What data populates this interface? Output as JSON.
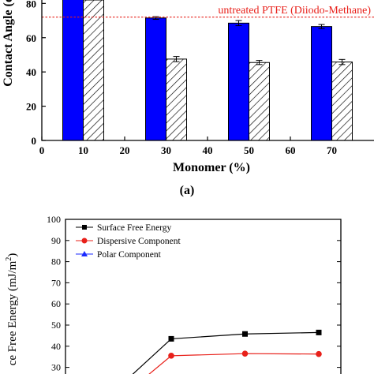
{
  "chart_data": [
    {
      "type": "bar",
      "panel_label": "(a)",
      "xlabel": "Monomer (%)",
      "ylabel": "Contact Angle (d",
      "xlim": [
        0,
        80
      ],
      "x_ticks": [
        "0",
        "10",
        "20",
        "30",
        "40",
        "50",
        "60",
        "70"
      ],
      "ylim": [
        0,
        82
      ],
      "y_ticks": [
        "0",
        "20",
        "40",
        "60",
        "80"
      ],
      "categories": [
        "10",
        "30",
        "50",
        "70"
      ],
      "series": [
        {
          "values": [
            85,
            71.5,
            68.5,
            66.5
          ],
          "errors": [
            0,
            0.8,
            1.5,
            1.2
          ],
          "fill": "#0000ff"
        },
        {
          "values": [
            82,
            47.5,
            45.5,
            45.8
          ],
          "errors": [
            0,
            1.5,
            1.2,
            1.5
          ],
          "fill": "hatched"
        }
      ],
      "reference_line": {
        "value": 72,
        "label": "untreated PTFE (Diiodo-Methane)",
        "color": "#e8201a"
      }
    },
    {
      "type": "line",
      "ylabel": "ce Free Energy (mJ/m",
      "ylabel_sup": "2",
      "ylabel_close": ")",
      "ylim": [
        30,
        100
      ],
      "y_ticks": [
        "30",
        "40",
        "50",
        "60",
        "70",
        "80",
        "90",
        "100"
      ],
      "grid": false,
      "legend_position": "top-left",
      "series": [
        {
          "name": "Surface Free Energy",
          "marker": "square",
          "color": "#000000",
          "x": [
            30,
            50,
            70
          ],
          "values": [
            43.5,
            45.8,
            46.5
          ]
        },
        {
          "name": "Dispersive Component",
          "marker": "circle",
          "color": "#e8201a",
          "x": [
            30,
            50,
            70
          ],
          "values": [
            35.5,
            36.5,
            36.3
          ]
        },
        {
          "name": "Polar Component",
          "marker": "triangle",
          "color": "#1a2aff",
          "x": [],
          "values": []
        }
      ]
    }
  ]
}
